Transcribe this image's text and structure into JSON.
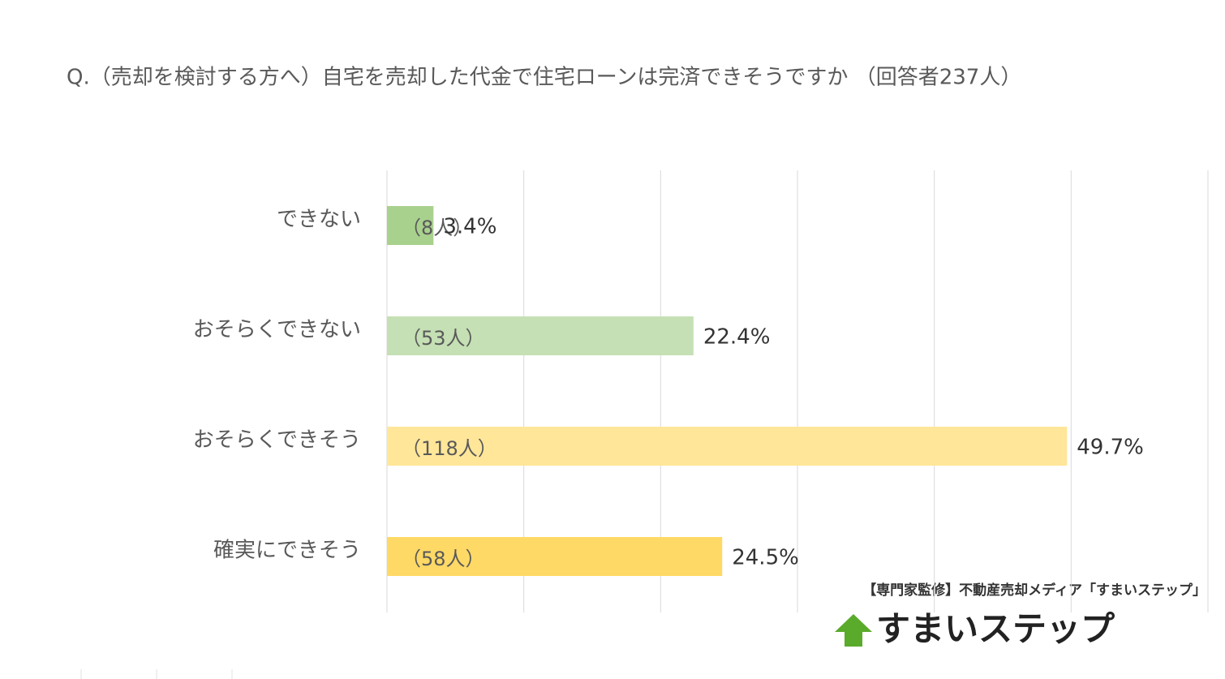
{
  "chart_data": {
    "type": "bar",
    "orientation": "horizontal",
    "title": "Q.（売却を検討する方へ）自宅を売却した代金で住宅ローンは完済できそうですか （回答者237人）",
    "categories": [
      "できない",
      "おそらくできない",
      "おそらくできそう",
      "確実にできそう"
    ],
    "values": [
      3.4,
      22.4,
      49.7,
      24.5
    ],
    "value_labels": [
      "3.4%",
      "22.4%",
      "49.7%",
      "24.5%"
    ],
    "count_labels": [
      "（8人）",
      "（53人）",
      "（118人）",
      "（58人）"
    ],
    "colors": [
      "#a9d18e",
      "#c5e0b4",
      "#ffe699",
      "#ffd966"
    ],
    "xlim": [
      0,
      60
    ],
    "xticks": [
      0,
      10,
      20,
      30,
      40,
      50,
      60
    ],
    "grid": true,
    "source": "【専門家監修】不動産売却メディア「すまいステップ」",
    "logo": "すまいステップ"
  }
}
